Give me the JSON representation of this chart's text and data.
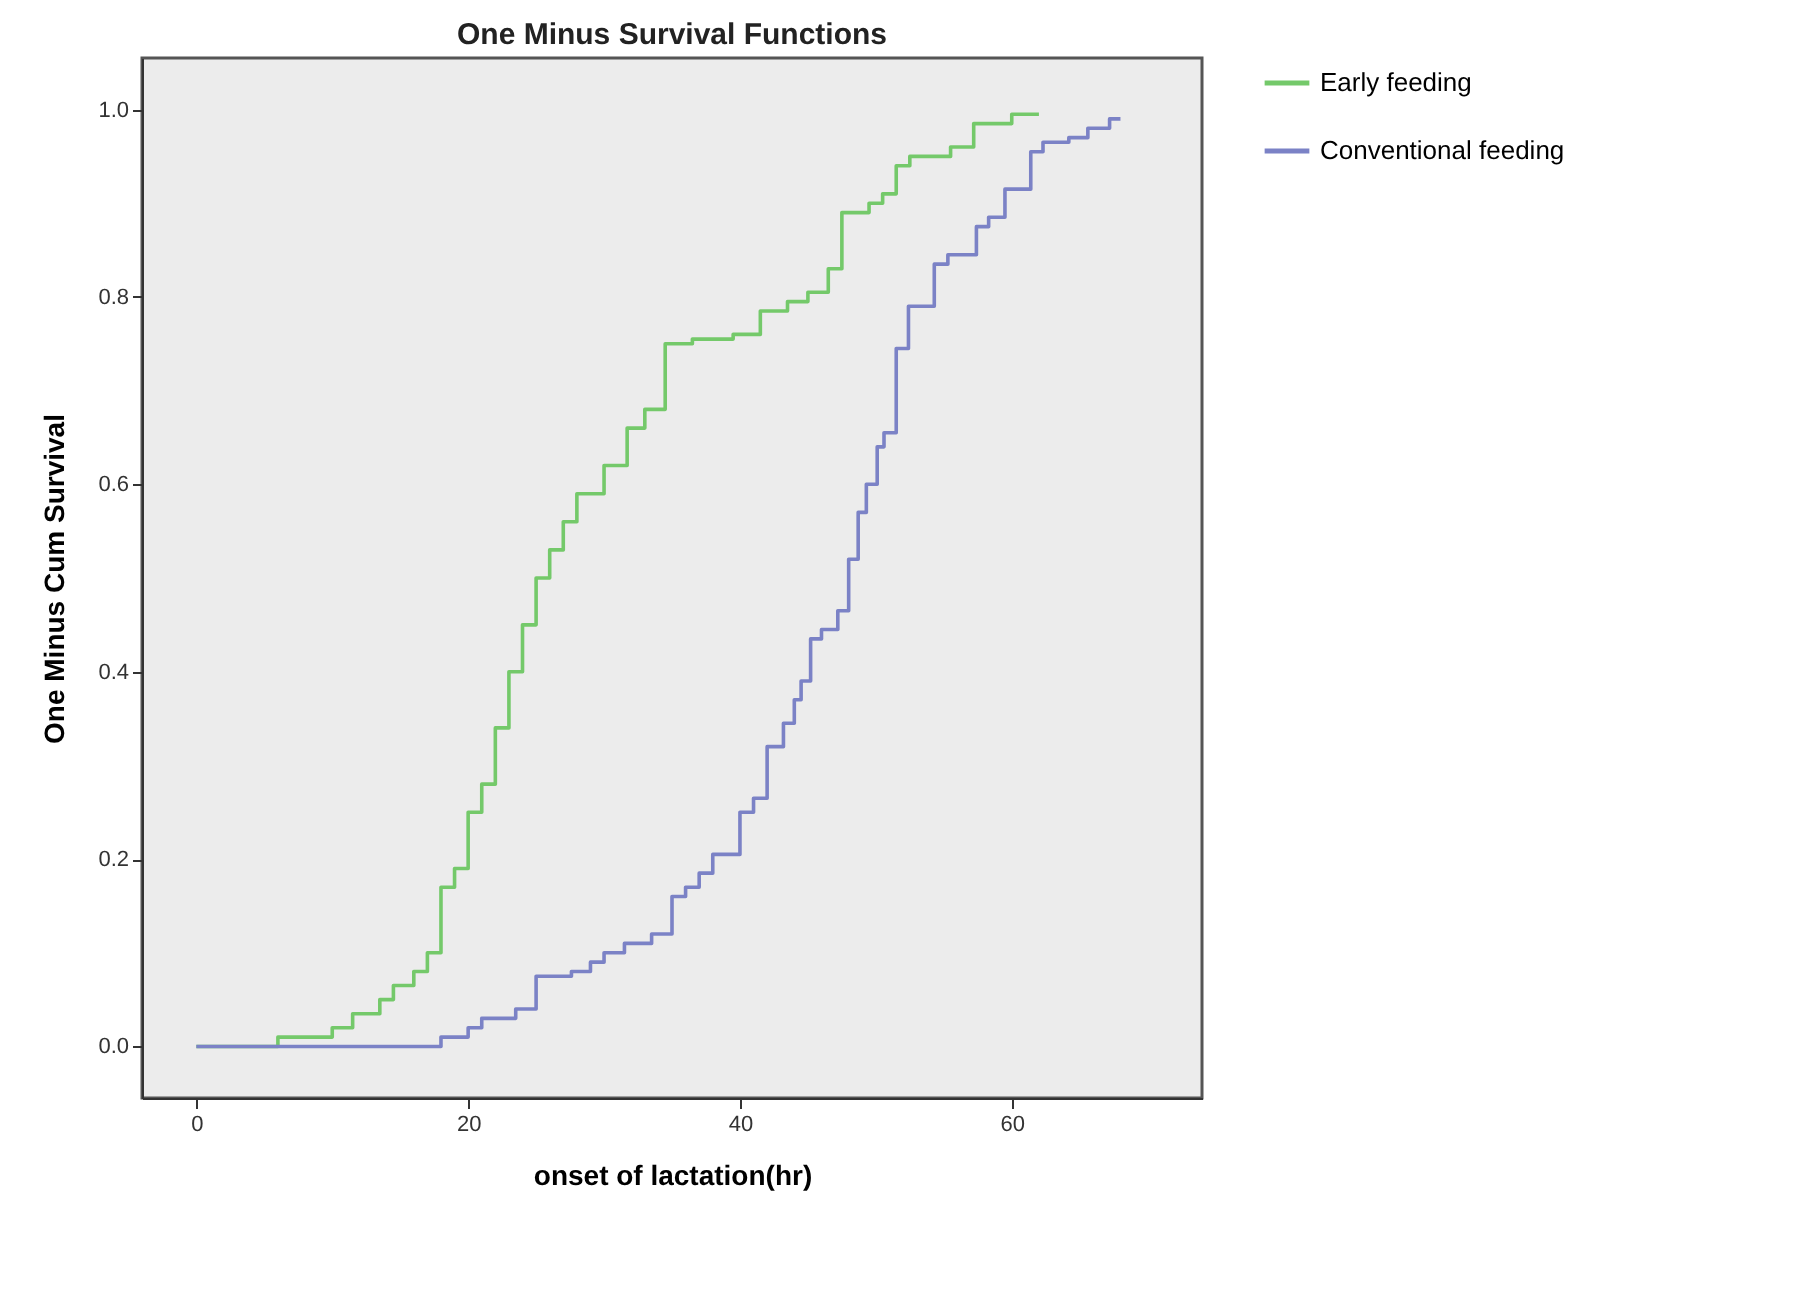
{
  "chart_data": {
    "type": "step",
    "title": "One Minus Survival Functions",
    "xlabel": "onset of lactation(hr)",
    "ylabel": "One Minus Cum Survival",
    "xlim": [
      -4,
      74
    ],
    "xticks": [
      0,
      20,
      40,
      60
    ],
    "ylim": [
      -0.055,
      1.055
    ],
    "yticks": [
      {
        "value": 0,
        "label": "0.0"
      },
      {
        "value": 0.2,
        "label": "0.2"
      },
      {
        "value": 0.4,
        "label": "0.4"
      },
      {
        "value": 0.6,
        "label": "0.6"
      },
      {
        "value": 0.8,
        "label": "0.8"
      },
      {
        "value": 1,
        "label": "1.0"
      }
    ],
    "grid": false,
    "legend": "top right",
    "series": [
      {
        "name": "Early feeding",
        "color": "#74c96a",
        "x": [
          0,
          6,
          10,
          11.5,
          13.5,
          14.5,
          16,
          17,
          18,
          19,
          20,
          21,
          22,
          23,
          24,
          25,
          26,
          27,
          28,
          30,
          31.7,
          33,
          34.5,
          36.5,
          39.5,
          41.5,
          43.5,
          45,
          46.5,
          47.5,
          49.5,
          50.5,
          51.5,
          52.5,
          55.5,
          57.2,
          60,
          62
        ],
        "values": [
          0,
          0.01,
          0.02,
          0.035,
          0.05,
          0.065,
          0.08,
          0.1,
          0.17,
          0.19,
          0.25,
          0.28,
          0.34,
          0.4,
          0.45,
          0.5,
          0.53,
          0.56,
          0.59,
          0.62,
          0.66,
          0.68,
          0.75,
          0.755,
          0.76,
          0.785,
          0.795,
          0.805,
          0.83,
          0.89,
          0.9,
          0.91,
          0.94,
          0.95,
          0.96,
          0.985,
          0.995,
          0.995
        ]
      },
      {
        "name": "Conventional feeding",
        "color": "#7b82c6",
        "x": [
          0,
          18,
          20,
          21,
          23.5,
          25,
          27.6,
          29,
          30,
          31.5,
          33.5,
          35,
          36,
          37,
          38,
          40,
          41,
          42,
          43.2,
          44,
          44.5,
          45.2,
          46,
          47.2,
          48,
          48.7,
          49.3,
          50.1,
          50.6,
          51.5,
          52.4,
          54.3,
          55.3,
          57.4,
          58.3,
          59.5,
          61.4,
          62.3,
          64.2,
          65.6,
          67.2,
          68
        ],
        "values": [
          0,
          0.01,
          0.02,
          0.03,
          0.04,
          0.075,
          0.08,
          0.09,
          0.1,
          0.11,
          0.12,
          0.16,
          0.17,
          0.185,
          0.205,
          0.25,
          0.265,
          0.32,
          0.345,
          0.37,
          0.39,
          0.435,
          0.445,
          0.465,
          0.52,
          0.57,
          0.6,
          0.64,
          0.655,
          0.745,
          0.79,
          0.835,
          0.845,
          0.875,
          0.885,
          0.915,
          0.955,
          0.965,
          0.97,
          0.98,
          0.99,
          0.99
        ]
      }
    ]
  }
}
